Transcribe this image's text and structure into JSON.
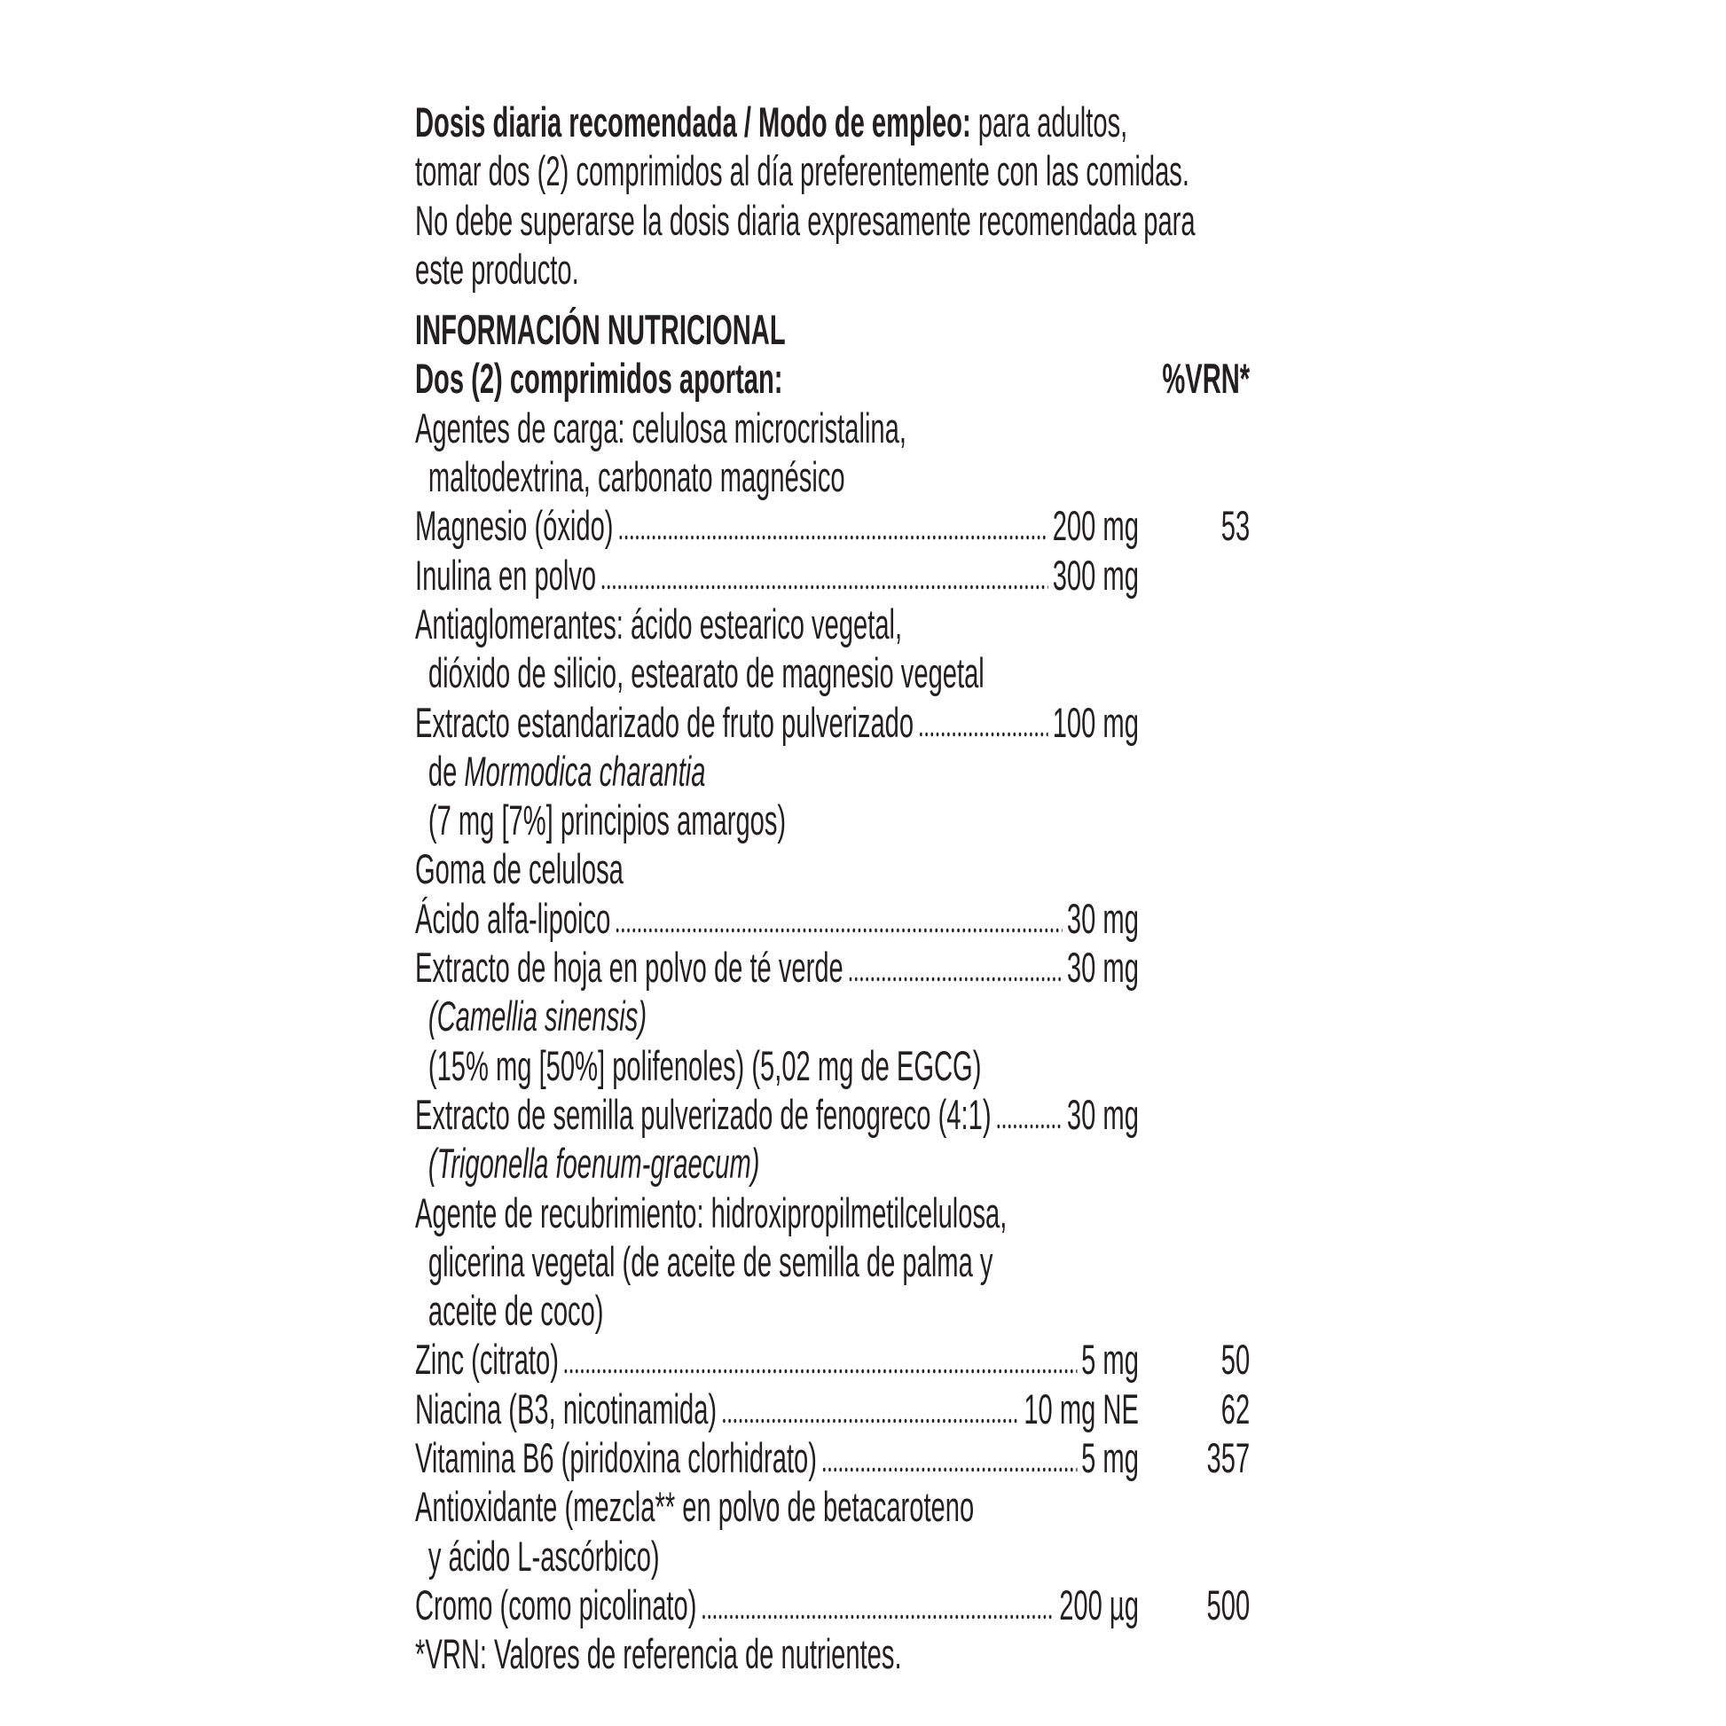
{
  "dosage": {
    "label": "Dosis diaria recomendada / Modo de empleo:",
    "text1": " para adultos,",
    "line2": "tomar dos (2) comprimidos al día preferentemente con las comidas.",
    "line3": "No debe superarse la dosis diaria expresamente recomendada para",
    "line4": "este producto."
  },
  "nutrition": {
    "title": "INFORMACIÓN NUTRICIONAL",
    "subtitle": "Dos (2) comprimidos aportan:",
    "vrn_header": "%VRN*",
    "rows": [
      {
        "name": "Agentes de carga: celulosa microcristalina,"
      },
      {
        "name": "maltodextrina, carbonato magnésico",
        "indent": true
      },
      {
        "name": "Magnesio (óxido)",
        "amount": "200 mg",
        "vrn": "53"
      },
      {
        "name": "Inulina en polvo",
        "amount": "300 mg"
      },
      {
        "name": "Antiaglomerantes: ácido estearico vegetal,"
      },
      {
        "name": "dióxido de silicio, estearato de magnesio vegetal",
        "indent": true
      },
      {
        "name": "Extracto estandarizado de fruto pulverizado",
        "amount": "100 mg"
      },
      {
        "name": "de ",
        "italic": "Mormodica charantia",
        "indent": true
      },
      {
        "name": "(7 mg [7%] principios amargos)",
        "indent": true
      },
      {
        "name": "Goma de celulosa"
      },
      {
        "name": "Ácido alfa-lipoico",
        "amount": "30 mg"
      },
      {
        "name": "Extracto de hoja en polvo de té verde",
        "amount": "30 mg"
      },
      {
        "name": "",
        "italic": "(Camellia sinensis)",
        "indent": true
      },
      {
        "name": "(15% mg [50%] polifenoles) (5,02 mg de EGCG)",
        "indent": true
      },
      {
        "name": "Extracto de semilla pulverizado de fenogreco (4:1)",
        "amount": "30 mg"
      },
      {
        "name": "",
        "italic": "(Trigonella foenum-graecum)",
        "indent": true
      },
      {
        "name": "Agente de recubrimiento: hidroxipropilmetilcelulosa,"
      },
      {
        "name": "glicerina vegetal (de aceite de semilla de palma y",
        "indent": true
      },
      {
        "name": "aceite de coco)",
        "indent": true
      },
      {
        "name": "Zinc (citrato)",
        "amount": "5 mg",
        "vrn": "50"
      },
      {
        "name": "Niacina (B3, nicotinamida)",
        "amount": "10 mg NE",
        "vrn": "62"
      },
      {
        "name": "Vitamina B6 (piridoxina clorhidrato)",
        "amount": "5 mg",
        "vrn": "357"
      },
      {
        "name": "Antioxidante (mezcla** en polvo de betacaroteno"
      },
      {
        "name": "y ácido L-ascórbico)",
        "indent": true
      },
      {
        "name": "Cromo (como picolinato)",
        "amount": "200 µg",
        "vrn": "500"
      }
    ],
    "footnote": "*VRN: Valores de referencia de nutrientes."
  },
  "colors": {
    "text": "#231f20",
    "background": "#ffffff"
  }
}
